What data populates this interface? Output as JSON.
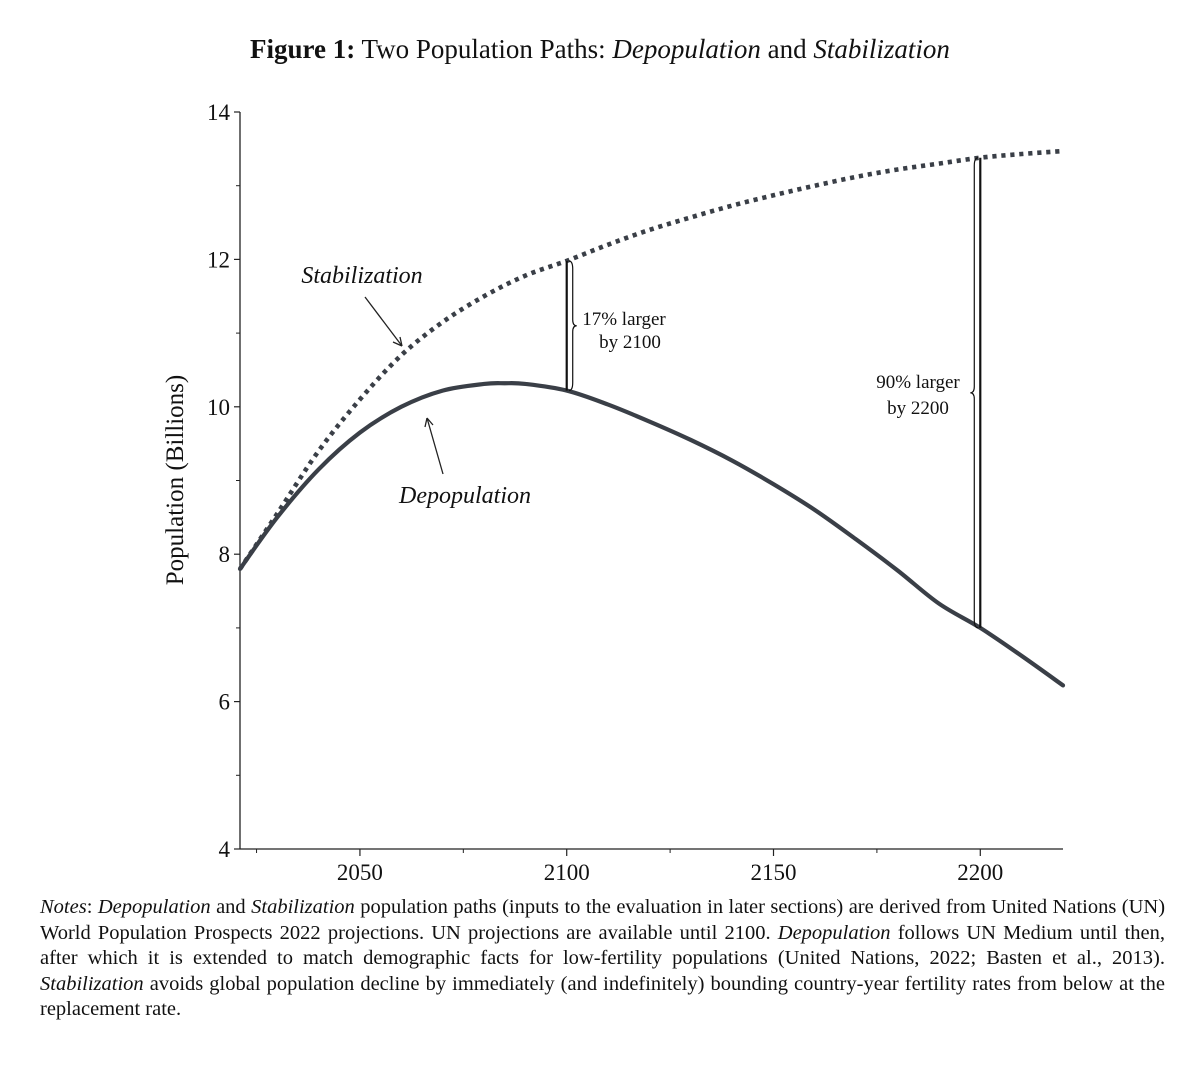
{
  "figure": {
    "label": "Figure 1:",
    "title_plain": "Two Population Paths:",
    "title_italic_1": "Depopulation",
    "title_and": "and",
    "title_italic_2": "Stabilization"
  },
  "chart_data": {
    "type": "line",
    "xlabel": "",
    "ylabel": "Population (Billions)",
    "xlim": [
      2021,
      2220
    ],
    "ylim": [
      4,
      14
    ],
    "x_ticks": [
      2050,
      2100,
      2150,
      2200
    ],
    "y_ticks": [
      4,
      6,
      8,
      10,
      12,
      14
    ],
    "series": [
      {
        "name": "Stabilization",
        "style": "dotted",
        "color": "#3a3f47",
        "x": [
          2021,
          2030,
          2040,
          2050,
          2060,
          2070,
          2080,
          2090,
          2100,
          2110,
          2120,
          2130,
          2140,
          2150,
          2160,
          2170,
          2180,
          2190,
          2200,
          2210,
          2220
        ],
        "values": [
          7.8,
          8.55,
          9.4,
          10.1,
          10.7,
          11.15,
          11.5,
          11.78,
          11.98,
          12.2,
          12.4,
          12.57,
          12.73,
          12.87,
          13.0,
          13.12,
          13.22,
          13.3,
          13.38,
          13.43,
          13.47
        ]
      },
      {
        "name": "Depopulation",
        "style": "solid",
        "color": "#3a3f47",
        "x": [
          2021,
          2030,
          2040,
          2050,
          2060,
          2070,
          2080,
          2085,
          2090,
          2100,
          2110,
          2120,
          2130,
          2140,
          2150,
          2160,
          2170,
          2180,
          2190,
          2200,
          2210,
          2220
        ],
        "values": [
          7.8,
          8.5,
          9.15,
          9.65,
          10.0,
          10.22,
          10.31,
          10.32,
          10.31,
          10.22,
          10.03,
          9.8,
          9.55,
          9.27,
          8.95,
          8.6,
          8.2,
          7.78,
          7.33,
          7.0,
          6.62,
          6.22
        ]
      }
    ],
    "annotations": [
      {
        "label": "Stabilization",
        "italic": true
      },
      {
        "label": "Depopulation",
        "italic": true
      },
      {
        "line1": "17% larger",
        "line2": "by 2100",
        "x": 2100,
        "from": 10.22,
        "to": 11.98
      },
      {
        "line1": "90% larger",
        "line2": "by 2200",
        "x": 2200,
        "from": 7.0,
        "to": 13.38
      }
    ]
  },
  "notes": {
    "prefix": "Notes",
    "colon": ":",
    "t_depop": "Depopulation",
    "t_and": "and",
    "t_stab": "Stabilization",
    "t_1": "population paths (inputs to the evaluation in later sections) are derived from United Nations (UN) World Population Prospects 2022 projections.  UN projections are available until 2100.",
    "t_depop2": "Depopulation",
    "t_2": "follows UN Medium until then, after which it is extended to match demographic facts for low-fertility populations (United Nations, 2022; Basten et al., 2013).",
    "t_stab2": "Stabilization",
    "t_3": "avoids global population decline by immediately (and indefinitely) bounding country-year fertility rates from below at the replacement rate."
  }
}
